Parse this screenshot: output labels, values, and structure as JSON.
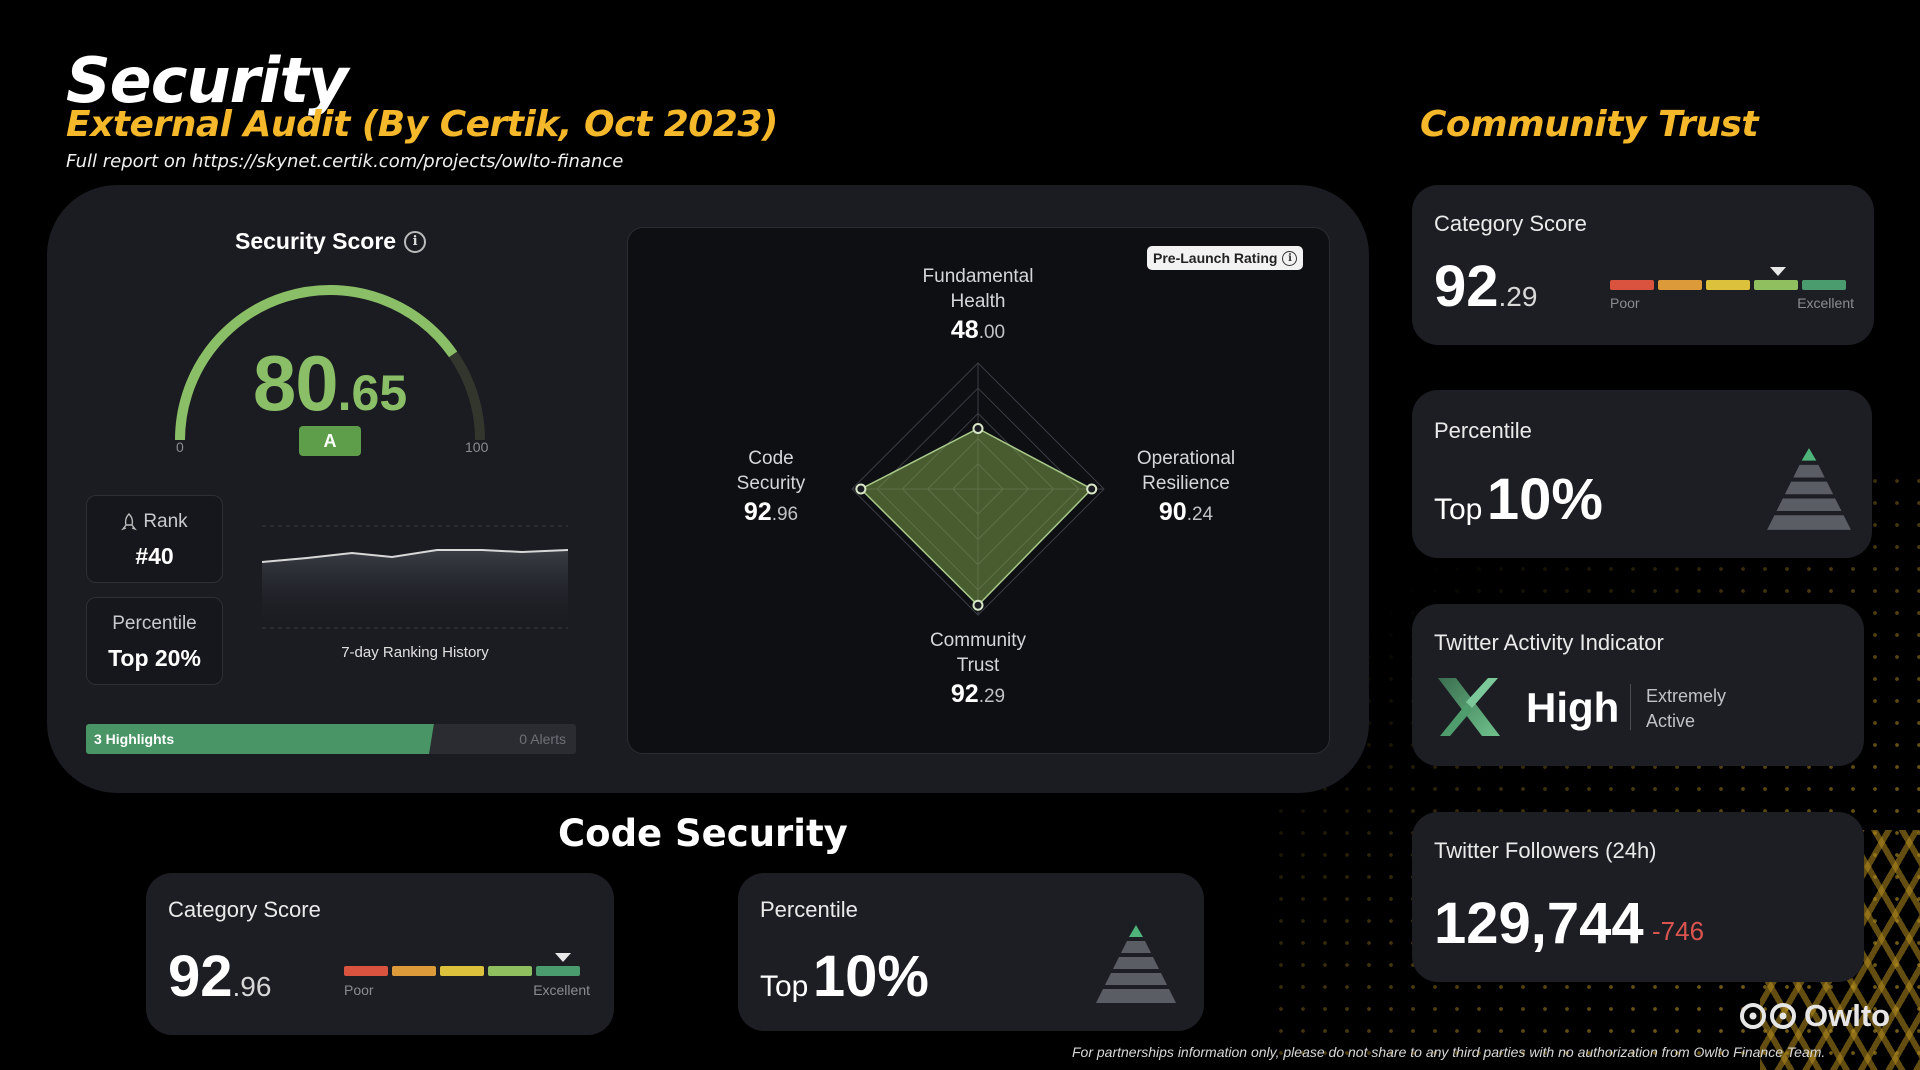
{
  "header": {
    "title": "Security",
    "subtitle": "External Audit (By Certik, Oct 2023)",
    "report_link": "Full report on https://skynet.certik.com/projects/owlto-finance"
  },
  "security_panel": {
    "score_title": "Security Score",
    "score_int": "80",
    "score_dec": ".65",
    "score_value": 80.65,
    "grade": "A",
    "gauge_min": "0",
    "gauge_max": "100",
    "rank_label": "Rank",
    "rank_value": "#40",
    "percentile_label": "Percentile",
    "percentile_value": "Top 20%",
    "history_label": "7-day Ranking History",
    "highlights_label": "3 Highlights",
    "alerts_label": "0 Alerts",
    "highlights_fraction": 0.71
  },
  "radar": {
    "badge": "Pre-Launch Rating",
    "axes": [
      {
        "label_line1": "Fundamental",
        "label_line2": "Health",
        "int": "48",
        "dec": ".00",
        "value": 48.0
      },
      {
        "label_line1": "Operational",
        "label_line2": "Resilience",
        "int": "90",
        "dec": ".24",
        "value": 90.24
      },
      {
        "label_line1": "Community",
        "label_line2": "Trust",
        "int": "92",
        "dec": ".29",
        "value": 92.29
      },
      {
        "label_line1": "Code",
        "label_line2": "Security",
        "int": "92",
        "dec": ".96",
        "value": 92.96
      }
    ]
  },
  "code_security": {
    "heading": "Code Security",
    "category_label": "Category Score",
    "score_int": "92",
    "score_dec": ".96",
    "scale_poor": "Poor",
    "scale_excellent": "Excellent",
    "percentile_label": "Percentile",
    "percentile_prefix": "Top",
    "percentile_value": "10%"
  },
  "community_trust": {
    "heading": "Community Trust",
    "category_label": "Category Score",
    "score_int": "92",
    "score_dec": ".29",
    "scale_poor": "Poor",
    "scale_excellent": "Excellent",
    "percentile_label": "Percentile",
    "percentile_prefix": "Top",
    "percentile_value": "10%",
    "twitter_activity_label": "Twitter Activity Indicator",
    "twitter_activity_value": "High",
    "twitter_activity_desc1": "Extremely",
    "twitter_activity_desc2": "Active",
    "followers_label": "Twitter Followers (24h)",
    "followers_value": "129,744",
    "followers_delta": "-746"
  },
  "footer": {
    "brand": "Owlto",
    "disclaimer": "For partnerships information only, please do not share to any third parties with no authorization from Owlto Finance Team."
  },
  "colors": {
    "accent_gold": "#f5b82a",
    "score_green": "#8bbf67",
    "seg_colors": [
      "#d9533f",
      "#dd9a3a",
      "#dcc13c",
      "#8fbf5e",
      "#4a9c6e"
    ]
  },
  "icons": [
    "info-icon",
    "rank-icon",
    "x-logo-icon",
    "pyramid-icon",
    "owl-logo-icon"
  ]
}
